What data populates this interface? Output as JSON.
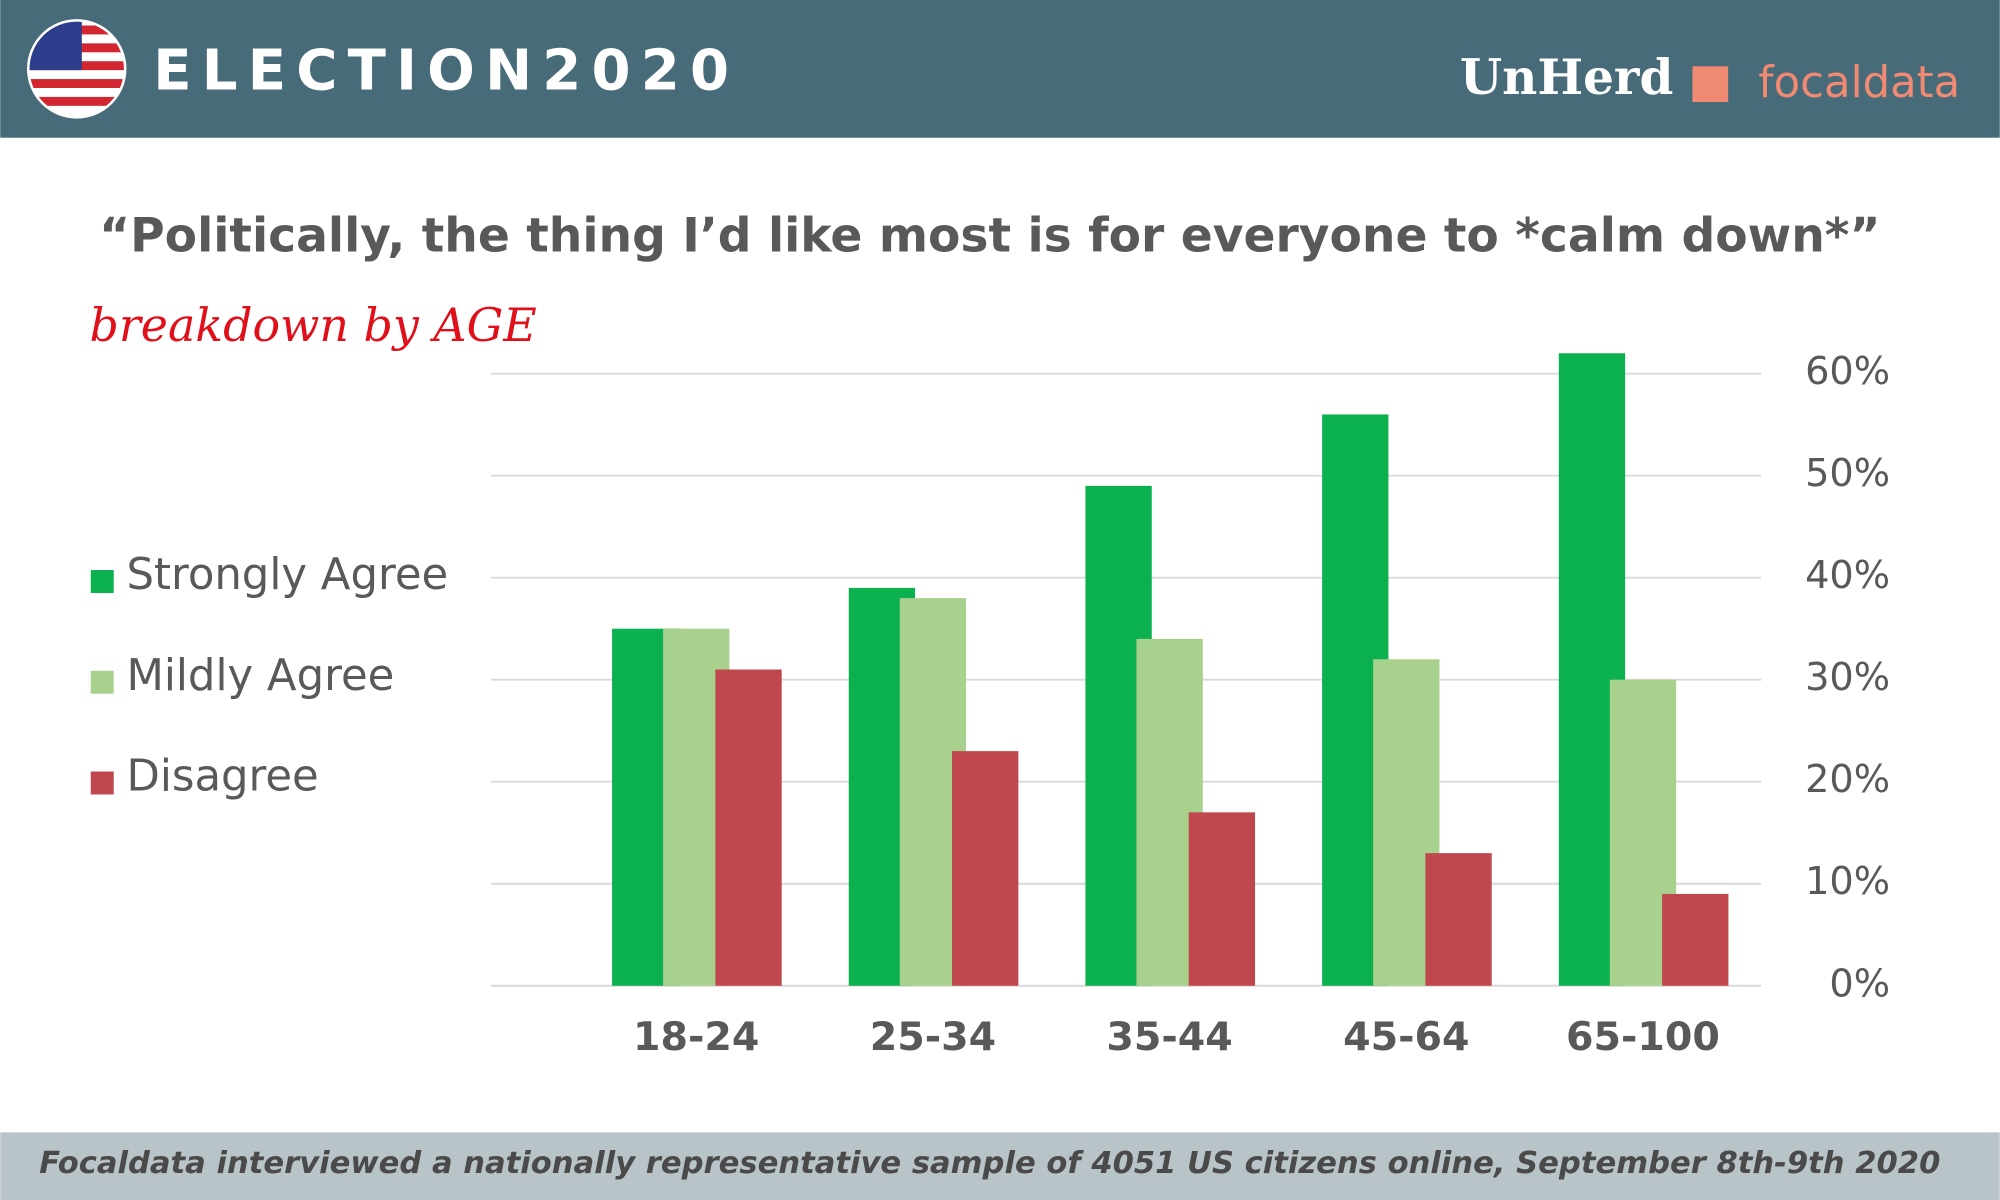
{
  "header": {
    "title": "ELECTION2020",
    "logos": [
      "UnHerd",
      "focaldata"
    ]
  },
  "chart_data": {
    "type": "bar",
    "title": "“Politically, the thing I’d like most is for everyone to *calm down*”",
    "subtitle": "breakdown by AGE",
    "categories": [
      "18-24",
      "25-34",
      "35-44",
      "45-64",
      "65-100"
    ],
    "series": [
      {
        "name": "Strongly Agree",
        "color": "#0bb04f",
        "values": [
          35,
          39,
          49,
          56,
          62
        ]
      },
      {
        "name": "Mildly Agree",
        "color": "#a8d18d",
        "values": [
          35,
          38,
          34,
          32,
          30
        ]
      },
      {
        "name": "Disagree",
        "color": "#c0474d",
        "values": [
          31,
          23,
          17,
          13,
          9
        ]
      }
    ],
    "ylim": [
      0,
      62
    ],
    "yticks": [
      {
        "value": 0,
        "label": "0%"
      },
      {
        "value": 10,
        "label": "10%"
      },
      {
        "value": 20,
        "label": "20%"
      },
      {
        "value": 30,
        "label": "30%"
      },
      {
        "value": 40,
        "label": "40%"
      },
      {
        "value": 50,
        "label": "50%"
      },
      {
        "value": 60,
        "label": "60%"
      }
    ],
    "y_axis_side": "right",
    "grid": true,
    "legend": "left"
  },
  "footer": {
    "note": "Focaldata interviewed a nationally representative sample of 4051 US citizens online, September 8th-9th 2020"
  }
}
